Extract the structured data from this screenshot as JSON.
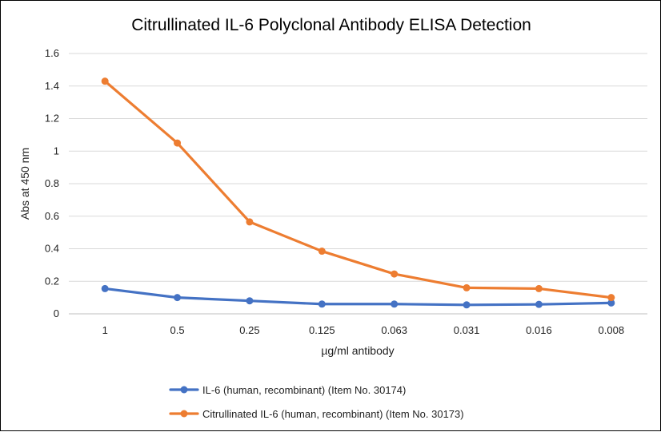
{
  "chart_data": {
    "type": "line",
    "title": "Citrullinated IL-6 Polyclonal Antibody ELISA Detection",
    "xlabel": "µg/ml antibody",
    "ylabel": "Abs at 450 nm",
    "categories": [
      "1",
      "0.5",
      "0.25",
      "0.125",
      "0.063",
      "0.031",
      "0.016",
      "0.008"
    ],
    "ylim": [
      0,
      1.6
    ],
    "yticks": [
      "0",
      "0.2",
      "0.4",
      "0.6",
      "0.8",
      "1",
      "1.2",
      "1.4",
      "1.6"
    ],
    "grid": true,
    "legend_position": "bottom",
    "series": [
      {
        "name": "IL-6 (human, recombinant) (Item No. 30174)",
        "color": "#4472C4",
        "values": [
          0.155,
          0.1,
          0.08,
          0.06,
          0.06,
          0.055,
          0.058,
          0.067
        ]
      },
      {
        "name": "Citrullinated IL-6 (human, recombinant) (Item No. 30173)",
        "color": "#ED7D31",
        "values": [
          1.43,
          1.05,
          0.565,
          0.385,
          0.245,
          0.16,
          0.155,
          0.1
        ]
      }
    ]
  }
}
